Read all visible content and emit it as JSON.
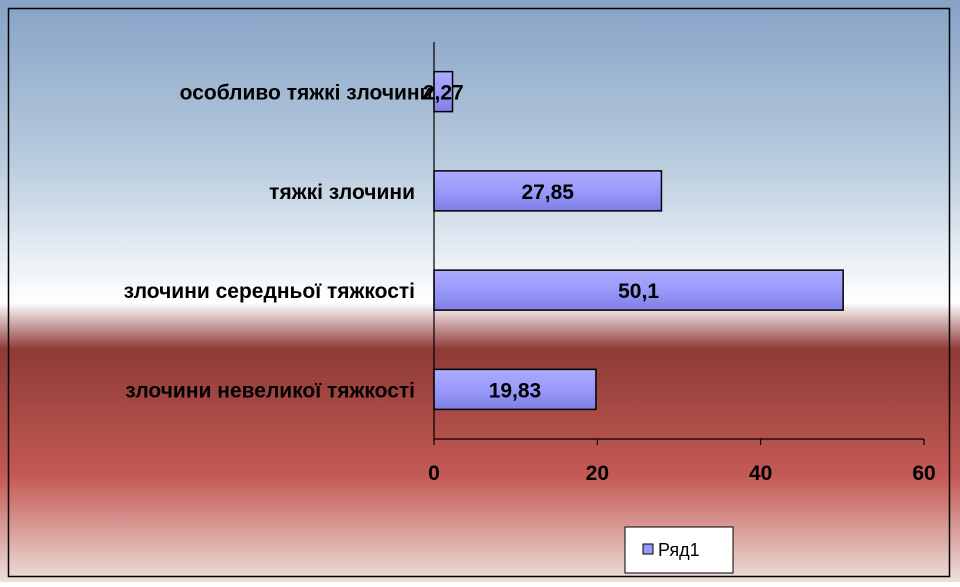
{
  "chart_data": {
    "type": "bar",
    "orientation": "horizontal",
    "categories": [
      "особливо тяжкі злочини",
      "тяжкі злочини",
      "злочини середньої тяжкості",
      "злочини невеликої тяжкості"
    ],
    "series": [
      {
        "name": "Ряд1",
        "values": [
          2.27,
          27.85,
          50.1,
          19.83
        ],
        "labels": [
          "2,27",
          "27,85",
          "50,1",
          "19,83"
        ]
      }
    ],
    "xlim": [
      0,
      60
    ],
    "xticks": [
      0,
      20,
      40,
      60
    ],
    "xtick_labels": [
      "0",
      "20",
      "40",
      "60"
    ],
    "legend": {
      "placement": "bottom-center",
      "label": "Ряд1"
    },
    "colors": {
      "bar_fill": "#9999FF",
      "bar_stroke": "#000000",
      "plot_top": "#7E9CC2",
      "plot_mid": "#FFFFFF",
      "plot_bottom": "#B24C49"
    },
    "grid": false
  }
}
